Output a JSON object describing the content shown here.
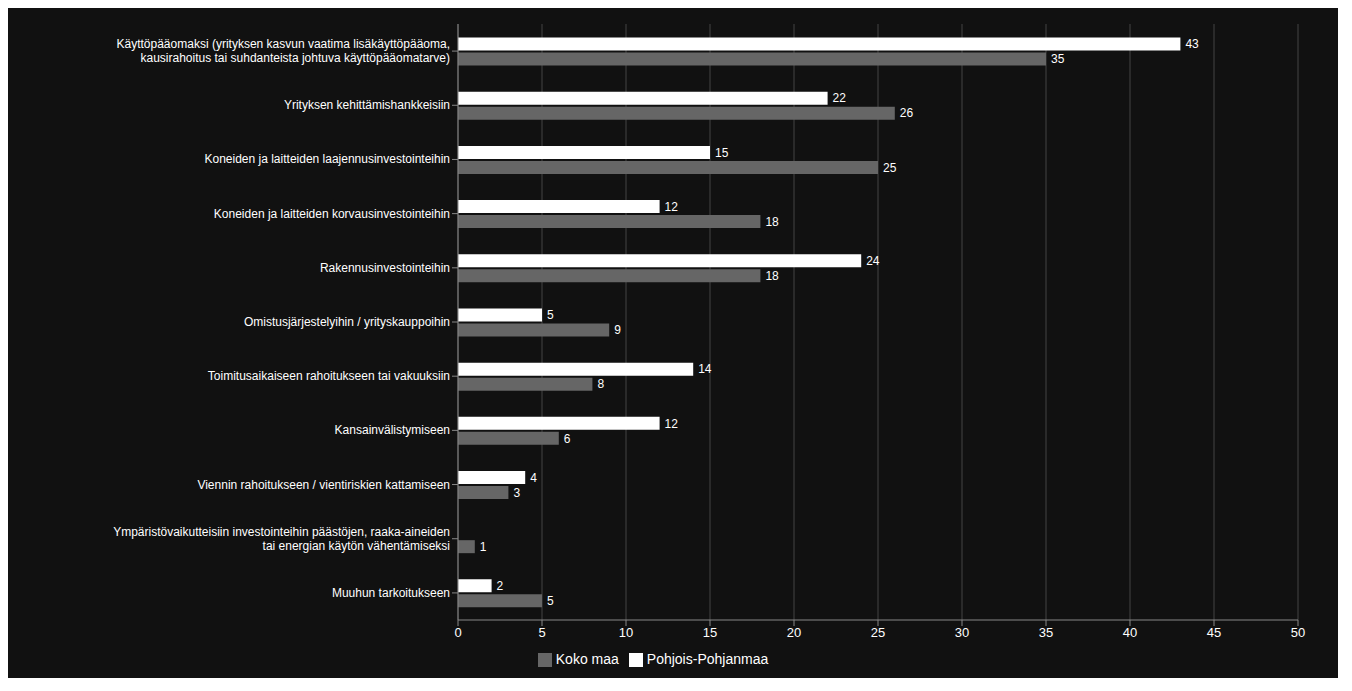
{
  "chart_data": {
    "type": "bar",
    "orientation": "horizontal",
    "categories": [
      "Käyttöpääomaksi (yrityksen kasvun vaatima lisäkäyttöpääoma,\nkausirahoitus tai suhdanteista johtuva käyttöpääomatarve)",
      "Yrityksen kehittämishankkeisiin",
      "Koneiden ja laitteiden laajennusinvestointeihin",
      "Koneiden ja laitteiden korvausinvestointeihin",
      "Rakennusinvestointeihin",
      "Omistusjärjestelyihin / yrityskauppoihin",
      "Toimitusaikaiseen rahoitukseen tai vakuuksiin",
      "Kansainvälistymiseen",
      "Viennin rahoitukseen / vientiriskien kattamiseen",
      "Ympäristövaikutteisiin investointeihin päästöjen, raaka-aineiden\ntai energian käytön vähentämiseksi",
      "Muuhun tarkoitukseen"
    ],
    "series": [
      {
        "name": "Pohjois-Pohjanmaa",
        "color": "#ffffff",
        "values": [
          43,
          22,
          15,
          12,
          24,
          5,
          14,
          12,
          4,
          0,
          2
        ]
      },
      {
        "name": "Koko maa",
        "color": "#666666",
        "values": [
          35,
          26,
          25,
          18,
          18,
          9,
          8,
          6,
          3,
          1,
          5
        ]
      }
    ],
    "xlim": [
      0,
      50
    ],
    "xticks": [
      0,
      5,
      10,
      15,
      20,
      25,
      30,
      35,
      40,
      45,
      50
    ],
    "grid": true,
    "legend": "bottom",
    "data_labels": true
  }
}
